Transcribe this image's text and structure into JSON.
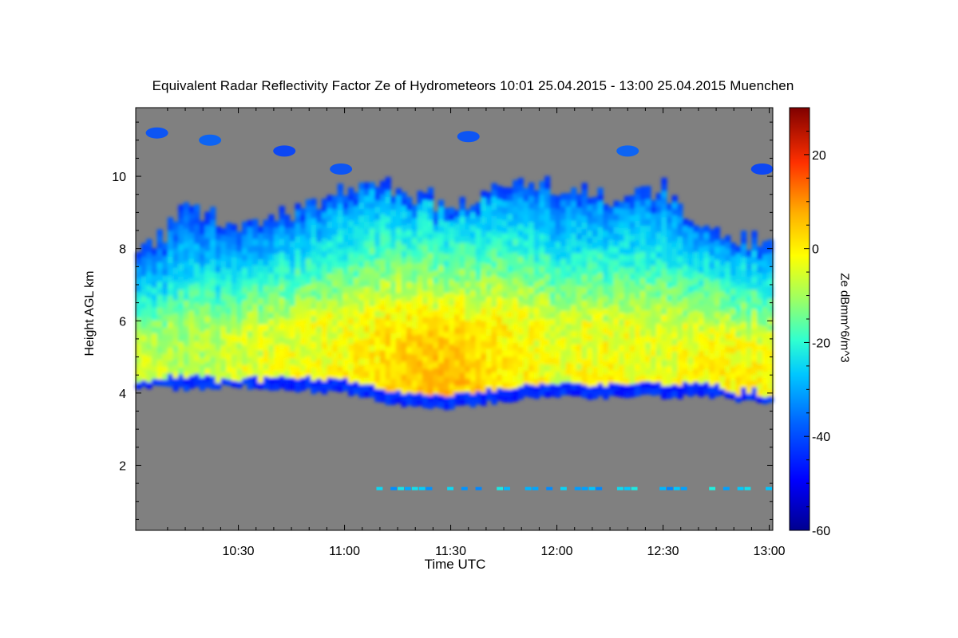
{
  "chart_data": {
    "type": "heatmap",
    "title": "Equivalent Radar Reflectivity Factor Ze of Hydrometeors   10:01 25.04.2015 - 13:00 25.04.2015 Muenchen",
    "xlabel": "Time UTC",
    "ylabel": "Height AGL km",
    "x_range_minutes_utc": [
      601,
      781
    ],
    "x_tick_minutes": [
      630,
      660,
      690,
      720,
      750,
      780
    ],
    "x_tick_labels": [
      "10:30",
      "11:00",
      "11:30",
      "12:00",
      "12:30",
      "13:00"
    ],
    "ylim": [
      0.2,
      11.9
    ],
    "y_ticks": [
      2,
      4,
      6,
      8,
      10
    ],
    "y_tick_labels": [
      "2",
      "4",
      "6",
      "8",
      "10"
    ],
    "colorbar": {
      "label": "Ze dBmm^6/m^3",
      "range": [
        -60,
        30
      ],
      "ticks": [
        20,
        0,
        -20,
        -40,
        -60
      ],
      "tick_labels": [
        "20",
        "0",
        "-20",
        "-40",
        "-60"
      ]
    },
    "no_data_color": "#808080",
    "main_cloud_layer": {
      "time_minutes": [
        601,
        615,
        630,
        645,
        660,
        675,
        690,
        705,
        720,
        735,
        750,
        765,
        781
      ],
      "base_km": [
        4.2,
        4.1,
        4.2,
        4.1,
        4.0,
        3.7,
        3.6,
        3.8,
        3.9,
        3.9,
        3.9,
        3.9,
        3.7
      ],
      "top_km": [
        7.5,
        9.0,
        8.6,
        8.9,
        9.5,
        9.6,
        9.0,
        9.9,
        9.6,
        9.2,
        9.6,
        8.2,
        8.1
      ],
      "core_dbz": [
        -10,
        -12,
        -9,
        -7,
        -6,
        -2,
        0,
        -4,
        -8,
        -6,
        -8,
        -5,
        -6
      ]
    },
    "upper_cloud_patches": [
      {
        "t": 607,
        "h": 11.2,
        "dbz": -40
      },
      {
        "t": 622,
        "h": 11.0,
        "dbz": -38
      },
      {
        "t": 643,
        "h": 10.7,
        "dbz": -42
      },
      {
        "t": 659,
        "h": 10.2,
        "dbz": -40
      },
      {
        "t": 695,
        "h": 11.1,
        "dbz": -40
      },
      {
        "t": 740,
        "h": 10.7,
        "dbz": -38
      },
      {
        "t": 778,
        "h": 10.2,
        "dbz": -42
      }
    ],
    "low_layer": {
      "height_km": 1.3,
      "time_range": [
        663,
        781
      ],
      "dbz": -28
    }
  }
}
